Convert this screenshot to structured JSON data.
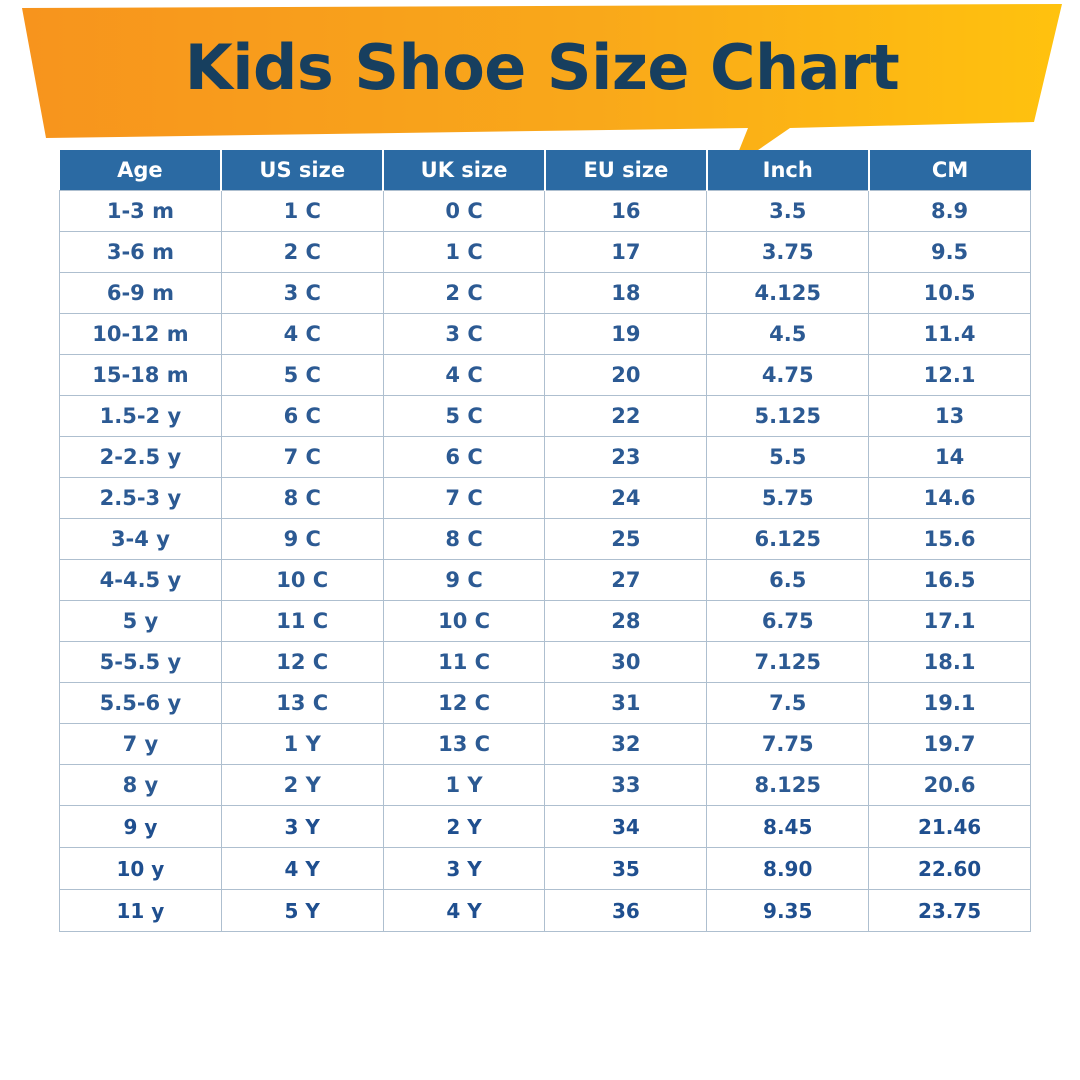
{
  "title": "Kids Shoe Size Chart",
  "colors": {
    "banner_orange": "#f7941d",
    "banner_yellow": "#ffc20e",
    "title_text": "#173f5f",
    "header_bg": "#2b6aa3",
    "header_text": "#ffffff",
    "cell_text": "#2c5a93",
    "grid_line": "#aebfcf"
  },
  "table": {
    "headers": [
      "Age",
      "US size",
      "UK size",
      "EU size",
      "Inch",
      "CM"
    ],
    "rows": [
      [
        "1-3 m",
        "1 C",
        "0 C",
        "16",
        "3.5",
        "8.9"
      ],
      [
        "3-6 m",
        "2 C",
        "1 C",
        "17",
        "3.75",
        "9.5"
      ],
      [
        "6-9 m",
        "3 C",
        "2 C",
        "18",
        "4.125",
        "10.5"
      ],
      [
        "10-12 m",
        "4 C",
        "3 C",
        "19",
        "4.5",
        "11.4"
      ],
      [
        "15-18 m",
        "5 C",
        "4 C",
        "20",
        "4.75",
        "12.1"
      ],
      [
        "1.5-2 y",
        "6 C",
        "5 C",
        "22",
        "5.125",
        "13"
      ],
      [
        "2-2.5 y",
        "7 C",
        "6 C",
        "23",
        "5.5",
        "14"
      ],
      [
        "2.5-3 y",
        "8 C",
        "7 C",
        "24",
        "5.75",
        "14.6"
      ],
      [
        "3-4 y",
        "9 C",
        "8 C",
        "25",
        "6.125",
        "15.6"
      ],
      [
        "4-4.5 y",
        "10 C",
        "9 C",
        "27",
        "6.5",
        "16.5"
      ],
      [
        "5 y",
        "11 C",
        "10 C",
        "28",
        "6.75",
        "17.1"
      ],
      [
        "5-5.5 y",
        "12 C",
        "11 C",
        "30",
        "7.125",
        "18.1"
      ],
      [
        "5.5-6 y",
        "13 C",
        "12 C",
        "31",
        "7.5",
        "19.1"
      ],
      [
        "7 y",
        "1 Y",
        "13 C",
        "32",
        "7.75",
        "19.7"
      ],
      [
        "8 y",
        "2 Y",
        "1 Y",
        "33",
        "8.125",
        "20.6"
      ],
      [
        "9 y",
        "3 Y",
        "2 Y",
        "34",
        "8.45",
        "21.46"
      ],
      [
        "10 y",
        "4 Y",
        "3 Y",
        "35",
        "8.90",
        "22.60"
      ],
      [
        "11 y",
        "5 Y",
        "4 Y",
        "36",
        "9.35",
        "23.75"
      ]
    ]
  }
}
